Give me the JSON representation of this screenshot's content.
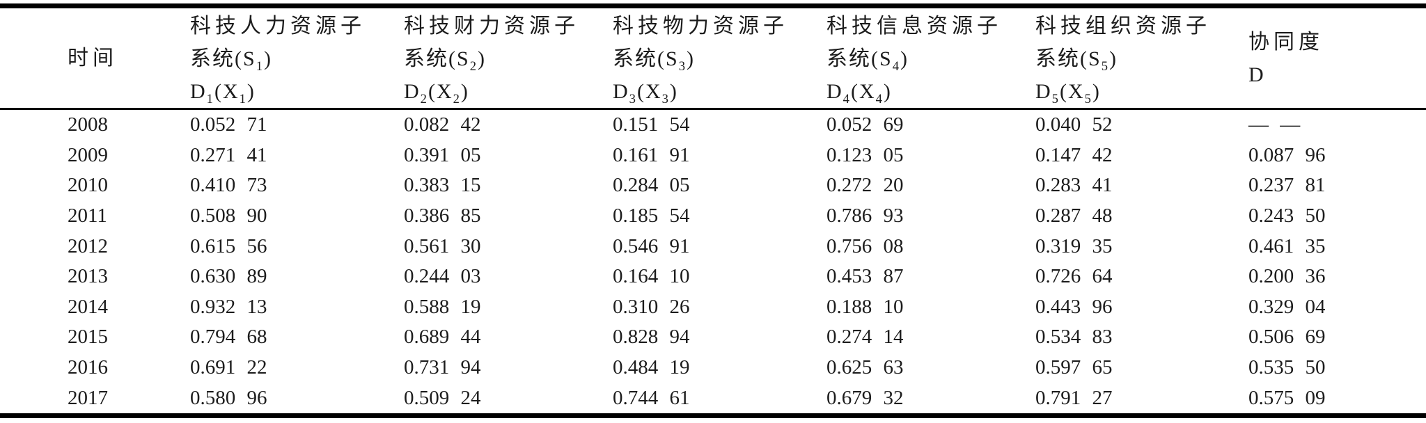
{
  "page": {
    "background": "#ffffff",
    "text_color": "#1c1c1c",
    "rule_color": "#000000"
  },
  "table": {
    "columns": [
      {
        "type": "single",
        "title": "时间"
      },
      {
        "type": "triple",
        "line1": "科技人力资源子",
        "sys": "系统",
        "s": "S",
        "d": "D",
        "x": "X",
        "index": "1"
      },
      {
        "type": "triple",
        "line1": "科技财力资源子",
        "sys": "系统",
        "s": "S",
        "d": "D",
        "x": "X",
        "index": "2"
      },
      {
        "type": "triple",
        "line1": "科技物力资源子",
        "sys": "系统",
        "s": "S",
        "d": "D",
        "x": "X",
        "index": "3"
      },
      {
        "type": "triple",
        "line1": "科技信息资源子",
        "sys": "系统",
        "s": "S",
        "d": "D",
        "x": "X",
        "index": "4"
      },
      {
        "type": "triple",
        "line1": "科技组织资源子",
        "sys": "系统",
        "s": "S",
        "d": "D",
        "x": "X",
        "index": "5"
      },
      {
        "type": "double",
        "line1": "协同度",
        "line2": "D"
      }
    ],
    "rows": [
      {
        "year": "2008",
        "values": [
          "0.052 71",
          "0.082 42",
          "0.151 54",
          "0.052 69",
          "0.040 52",
          "— —"
        ]
      },
      {
        "year": "2009",
        "values": [
          "0.271 41",
          "0.391 05",
          "0.161 91",
          "0.123 05",
          "0.147 42",
          "0.087 96"
        ]
      },
      {
        "year": "2010",
        "values": [
          "0.410 73",
          "0.383 15",
          "0.284 05",
          "0.272 20",
          "0.283 41",
          "0.237 81"
        ]
      },
      {
        "year": "2011",
        "values": [
          "0.508 90",
          "0.386 85",
          "0.185 54",
          "0.786 93",
          "0.287 48",
          "0.243 50"
        ]
      },
      {
        "year": "2012",
        "values": [
          "0.615 56",
          "0.561 30",
          "0.546 91",
          "0.756 08",
          "0.319 35",
          "0.461 35"
        ]
      },
      {
        "year": "2013",
        "values": [
          "0.630 89",
          "0.244 03",
          "0.164 10",
          "0.453 87",
          "0.726 64",
          "0.200 36"
        ]
      },
      {
        "year": "2014",
        "values": [
          "0.932 13",
          "0.588 19",
          "0.310 26",
          "0.188 10",
          "0.443 96",
          "0.329 04"
        ]
      },
      {
        "year": "2015",
        "values": [
          "0.794 68",
          "0.689 44",
          "0.828 94",
          "0.274 14",
          "0.534 83",
          "0.506 69"
        ]
      },
      {
        "year": "2016",
        "values": [
          "0.691 22",
          "0.731 94",
          "0.484 19",
          "0.625 63",
          "0.597 65",
          "0.535 50"
        ]
      },
      {
        "year": "2017",
        "values": [
          "0.580 96",
          "0.509 24",
          "0.744 61",
          "0.679 32",
          "0.791 27",
          "0.575 09"
        ]
      }
    ]
  }
}
